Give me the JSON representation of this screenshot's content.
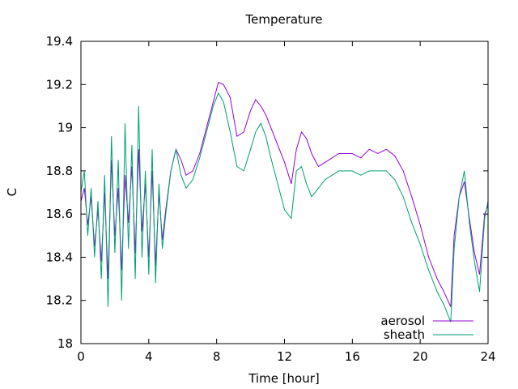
{
  "chart_data": {
    "type": "line",
    "title": "Temperature",
    "xlabel": "Time [hour]",
    "ylabel": "C",
    "xlim": [
      0,
      24
    ],
    "ylim": [
      18,
      19.4
    ],
    "xticks": [
      0,
      4,
      8,
      12,
      16,
      20,
      24
    ],
    "yticks": [
      18,
      18.2,
      18.4,
      18.6,
      18.8,
      19,
      19.2,
      19.4
    ],
    "xtick_labels": [
      "0",
      "4",
      "8",
      "12",
      "16",
      "20",
      "24"
    ],
    "ytick_labels": [
      "18",
      "18.2",
      "18.4",
      "18.6",
      "18.8",
      "19",
      "19.2",
      "19.4"
    ],
    "grid": false,
    "legend_position": "bottom-right",
    "series": [
      {
        "name": "aerosol",
        "color": "#9400d3",
        "x": [
          0,
          0.2,
          0.4,
          0.6,
          0.8,
          1.0,
          1.2,
          1.4,
          1.6,
          1.8,
          2.0,
          2.2,
          2.4,
          2.6,
          2.8,
          3.0,
          3.2,
          3.4,
          3.6,
          3.8,
          4.0,
          4.2,
          4.4,
          4.6,
          4.8,
          5.0,
          5.3,
          5.6,
          5.9,
          6.2,
          6.6,
          7.0,
          7.4,
          7.8,
          8.1,
          8.4,
          8.8,
          9.2,
          9.6,
          10.0,
          10.3,
          10.6,
          10.9,
          11.2,
          11.6,
          12.0,
          12.4,
          12.7,
          13.0,
          13.3,
          13.6,
          14.0,
          14.4,
          14.8,
          15.2,
          15.6,
          16.0,
          16.5,
          17.0,
          17.5,
          18.0,
          18.5,
          19.0,
          19.5,
          20.0,
          20.5,
          21.0,
          21.4,
          21.8,
          22.0,
          22.3,
          22.6,
          22.9,
          23.2,
          23.5,
          23.8,
          24.0
        ],
        "y": [
          18.66,
          18.72,
          18.55,
          18.68,
          18.45,
          18.62,
          18.38,
          18.7,
          18.3,
          18.85,
          18.5,
          18.72,
          18.34,
          18.78,
          18.56,
          18.82,
          18.42,
          18.9,
          18.52,
          18.74,
          18.4,
          18.8,
          18.36,
          18.7,
          18.48,
          18.62,
          18.8,
          18.9,
          18.85,
          18.78,
          18.8,
          18.88,
          19.0,
          19.12,
          19.21,
          19.2,
          19.14,
          18.96,
          18.98,
          19.08,
          19.13,
          19.1,
          19.06,
          19.0,
          18.92,
          18.84,
          18.74,
          18.9,
          18.98,
          18.95,
          18.88,
          18.82,
          18.84,
          18.86,
          18.88,
          18.88,
          18.88,
          18.86,
          18.9,
          18.88,
          18.9,
          18.87,
          18.8,
          18.68,
          18.55,
          18.4,
          18.3,
          18.24,
          18.17,
          18.5,
          18.68,
          18.75,
          18.58,
          18.42,
          18.32,
          18.6,
          18.64
        ]
      },
      {
        "name": "sheath",
        "color": "#009e73",
        "x": [
          0,
          0.2,
          0.4,
          0.6,
          0.8,
          1.0,
          1.2,
          1.4,
          1.6,
          1.8,
          2.0,
          2.2,
          2.4,
          2.6,
          2.8,
          3.0,
          3.2,
          3.4,
          3.6,
          3.8,
          4.0,
          4.2,
          4.4,
          4.6,
          4.8,
          5.0,
          5.3,
          5.6,
          5.9,
          6.2,
          6.6,
          7.0,
          7.4,
          7.8,
          8.1,
          8.4,
          8.8,
          9.2,
          9.6,
          10.0,
          10.3,
          10.6,
          10.9,
          11.2,
          11.6,
          12.0,
          12.4,
          12.7,
          13.0,
          13.3,
          13.6,
          14.0,
          14.4,
          14.8,
          15.2,
          15.6,
          16.0,
          16.5,
          17.0,
          17.5,
          18.0,
          18.5,
          19.0,
          19.5,
          20.0,
          20.5,
          21.0,
          21.4,
          21.8,
          22.0,
          22.3,
          22.6,
          22.9,
          23.2,
          23.5,
          23.8,
          24.0
        ],
        "y": [
          18.7,
          18.8,
          18.5,
          18.72,
          18.4,
          18.66,
          18.3,
          18.78,
          18.17,
          18.96,
          18.42,
          18.85,
          18.2,
          19.02,
          18.44,
          18.92,
          18.3,
          19.1,
          18.4,
          18.8,
          18.32,
          18.9,
          18.28,
          18.74,
          18.44,
          18.6,
          18.8,
          18.9,
          18.78,
          18.72,
          18.76,
          18.86,
          18.98,
          19.1,
          19.16,
          19.12,
          18.98,
          18.82,
          18.8,
          18.9,
          18.98,
          19.02,
          18.96,
          18.86,
          18.74,
          18.62,
          18.58,
          18.8,
          18.82,
          18.74,
          18.68,
          18.72,
          18.76,
          18.78,
          18.8,
          18.8,
          18.8,
          18.78,
          18.8,
          18.8,
          18.8,
          18.76,
          18.68,
          18.56,
          18.46,
          18.34,
          18.24,
          18.18,
          18.1,
          18.44,
          18.68,
          18.8,
          18.56,
          18.38,
          18.24,
          18.58,
          18.66
        ]
      }
    ]
  }
}
